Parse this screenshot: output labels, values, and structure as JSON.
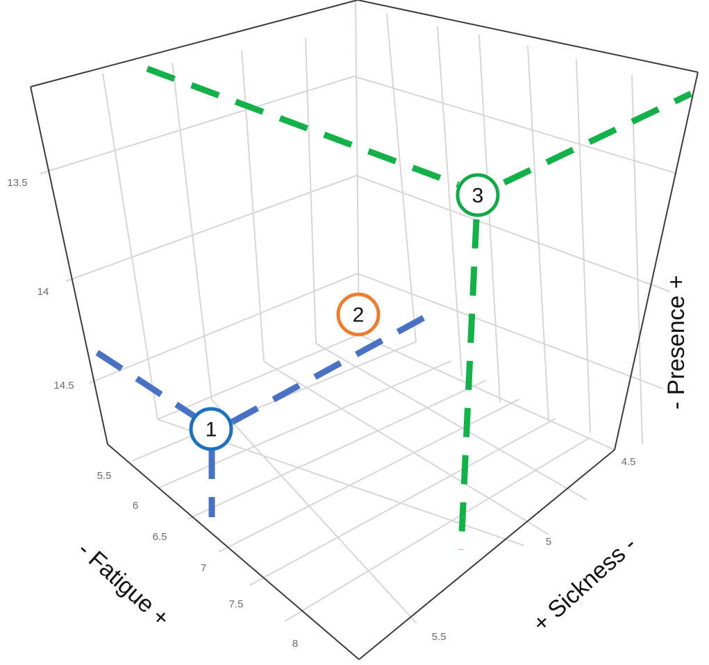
{
  "chart_data": {
    "type": "scatter3d",
    "axes": {
      "x": {
        "label": "- Fatigue +",
        "ticks": [
          "5.5",
          "6",
          "6.5",
          "7",
          "7.5",
          "8"
        ]
      },
      "y": {
        "label": "+ Sickness -",
        "ticks": [
          "4.5",
          "5",
          "5.5"
        ]
      },
      "z": {
        "label": "- Presence +",
        "ticks": [
          "13.5",
          "14",
          "14.5"
        ]
      }
    },
    "points": [
      {
        "label": "1",
        "color": "#1f6fbf",
        "guide_color": "#4a72c4",
        "fatigue": 5.7,
        "sickness": 4.3,
        "presence": 13.4
      },
      {
        "label": "2",
        "color": "#ee7d31",
        "fatigue": 6.4,
        "sickness": 4.4,
        "presence": 13.8
      },
      {
        "label": "3",
        "color": "#14a84b",
        "guide_color": "#14b14b",
        "fatigue": 5.4,
        "sickness": 5.3,
        "presence": 14.55
      }
    ],
    "grid": true,
    "legend": "none"
  }
}
